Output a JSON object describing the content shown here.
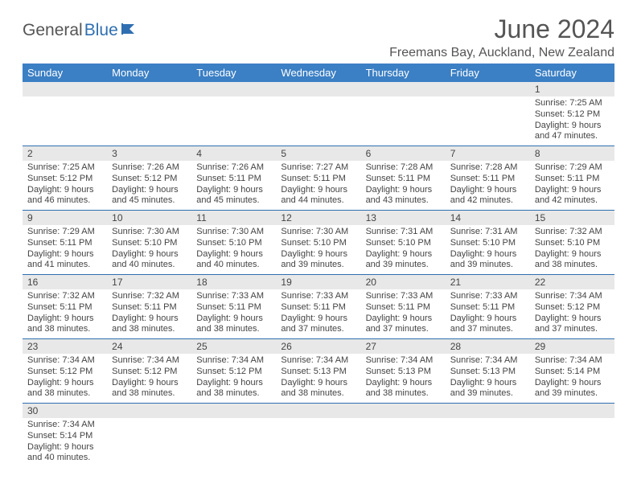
{
  "logo": {
    "part1": "General",
    "part2": "Blue"
  },
  "title": "June 2024",
  "location": "Freemans Bay, Auckland, New Zealand",
  "colors": {
    "header_bg": "#3b7fc4",
    "header_text": "#ffffff",
    "border": "#2f6fb0",
    "daynum_bg": "#e8e8e8",
    "text": "#444444",
    "logo_gray": "#555555",
    "logo_blue": "#2f6fb0"
  },
  "dow": [
    "Sunday",
    "Monday",
    "Tuesday",
    "Wednesday",
    "Thursday",
    "Friday",
    "Saturday"
  ],
  "weeks": [
    [
      {
        "n": "",
        "lines": []
      },
      {
        "n": "",
        "lines": []
      },
      {
        "n": "",
        "lines": []
      },
      {
        "n": "",
        "lines": []
      },
      {
        "n": "",
        "lines": []
      },
      {
        "n": "",
        "lines": []
      },
      {
        "n": "1",
        "lines": [
          "Sunrise: 7:25 AM",
          "Sunset: 5:12 PM",
          "Daylight: 9 hours",
          "and 47 minutes."
        ]
      }
    ],
    [
      {
        "n": "2",
        "lines": [
          "Sunrise: 7:25 AM",
          "Sunset: 5:12 PM",
          "Daylight: 9 hours",
          "and 46 minutes."
        ]
      },
      {
        "n": "3",
        "lines": [
          "Sunrise: 7:26 AM",
          "Sunset: 5:12 PM",
          "Daylight: 9 hours",
          "and 45 minutes."
        ]
      },
      {
        "n": "4",
        "lines": [
          "Sunrise: 7:26 AM",
          "Sunset: 5:11 PM",
          "Daylight: 9 hours",
          "and 45 minutes."
        ]
      },
      {
        "n": "5",
        "lines": [
          "Sunrise: 7:27 AM",
          "Sunset: 5:11 PM",
          "Daylight: 9 hours",
          "and 44 minutes."
        ]
      },
      {
        "n": "6",
        "lines": [
          "Sunrise: 7:28 AM",
          "Sunset: 5:11 PM",
          "Daylight: 9 hours",
          "and 43 minutes."
        ]
      },
      {
        "n": "7",
        "lines": [
          "Sunrise: 7:28 AM",
          "Sunset: 5:11 PM",
          "Daylight: 9 hours",
          "and 42 minutes."
        ]
      },
      {
        "n": "8",
        "lines": [
          "Sunrise: 7:29 AM",
          "Sunset: 5:11 PM",
          "Daylight: 9 hours",
          "and 42 minutes."
        ]
      }
    ],
    [
      {
        "n": "9",
        "lines": [
          "Sunrise: 7:29 AM",
          "Sunset: 5:11 PM",
          "Daylight: 9 hours",
          "and 41 minutes."
        ]
      },
      {
        "n": "10",
        "lines": [
          "Sunrise: 7:30 AM",
          "Sunset: 5:10 PM",
          "Daylight: 9 hours",
          "and 40 minutes."
        ]
      },
      {
        "n": "11",
        "lines": [
          "Sunrise: 7:30 AM",
          "Sunset: 5:10 PM",
          "Daylight: 9 hours",
          "and 40 minutes."
        ]
      },
      {
        "n": "12",
        "lines": [
          "Sunrise: 7:30 AM",
          "Sunset: 5:10 PM",
          "Daylight: 9 hours",
          "and 39 minutes."
        ]
      },
      {
        "n": "13",
        "lines": [
          "Sunrise: 7:31 AM",
          "Sunset: 5:10 PM",
          "Daylight: 9 hours",
          "and 39 minutes."
        ]
      },
      {
        "n": "14",
        "lines": [
          "Sunrise: 7:31 AM",
          "Sunset: 5:10 PM",
          "Daylight: 9 hours",
          "and 39 minutes."
        ]
      },
      {
        "n": "15",
        "lines": [
          "Sunrise: 7:32 AM",
          "Sunset: 5:10 PM",
          "Daylight: 9 hours",
          "and 38 minutes."
        ]
      }
    ],
    [
      {
        "n": "16",
        "lines": [
          "Sunrise: 7:32 AM",
          "Sunset: 5:11 PM",
          "Daylight: 9 hours",
          "and 38 minutes."
        ]
      },
      {
        "n": "17",
        "lines": [
          "Sunrise: 7:32 AM",
          "Sunset: 5:11 PM",
          "Daylight: 9 hours",
          "and 38 minutes."
        ]
      },
      {
        "n": "18",
        "lines": [
          "Sunrise: 7:33 AM",
          "Sunset: 5:11 PM",
          "Daylight: 9 hours",
          "and 38 minutes."
        ]
      },
      {
        "n": "19",
        "lines": [
          "Sunrise: 7:33 AM",
          "Sunset: 5:11 PM",
          "Daylight: 9 hours",
          "and 37 minutes."
        ]
      },
      {
        "n": "20",
        "lines": [
          "Sunrise: 7:33 AM",
          "Sunset: 5:11 PM",
          "Daylight: 9 hours",
          "and 37 minutes."
        ]
      },
      {
        "n": "21",
        "lines": [
          "Sunrise: 7:33 AM",
          "Sunset: 5:11 PM",
          "Daylight: 9 hours",
          "and 37 minutes."
        ]
      },
      {
        "n": "22",
        "lines": [
          "Sunrise: 7:34 AM",
          "Sunset: 5:12 PM",
          "Daylight: 9 hours",
          "and 37 minutes."
        ]
      }
    ],
    [
      {
        "n": "23",
        "lines": [
          "Sunrise: 7:34 AM",
          "Sunset: 5:12 PM",
          "Daylight: 9 hours",
          "and 38 minutes."
        ]
      },
      {
        "n": "24",
        "lines": [
          "Sunrise: 7:34 AM",
          "Sunset: 5:12 PM",
          "Daylight: 9 hours",
          "and 38 minutes."
        ]
      },
      {
        "n": "25",
        "lines": [
          "Sunrise: 7:34 AM",
          "Sunset: 5:12 PM",
          "Daylight: 9 hours",
          "and 38 minutes."
        ]
      },
      {
        "n": "26",
        "lines": [
          "Sunrise: 7:34 AM",
          "Sunset: 5:13 PM",
          "Daylight: 9 hours",
          "and 38 minutes."
        ]
      },
      {
        "n": "27",
        "lines": [
          "Sunrise: 7:34 AM",
          "Sunset: 5:13 PM",
          "Daylight: 9 hours",
          "and 38 minutes."
        ]
      },
      {
        "n": "28",
        "lines": [
          "Sunrise: 7:34 AM",
          "Sunset: 5:13 PM",
          "Daylight: 9 hours",
          "and 39 minutes."
        ]
      },
      {
        "n": "29",
        "lines": [
          "Sunrise: 7:34 AM",
          "Sunset: 5:14 PM",
          "Daylight: 9 hours",
          "and 39 minutes."
        ]
      }
    ],
    [
      {
        "n": "30",
        "lines": [
          "Sunrise: 7:34 AM",
          "Sunset: 5:14 PM",
          "Daylight: 9 hours",
          "and 40 minutes."
        ]
      },
      {
        "n": "",
        "lines": []
      },
      {
        "n": "",
        "lines": []
      },
      {
        "n": "",
        "lines": []
      },
      {
        "n": "",
        "lines": []
      },
      {
        "n": "",
        "lines": []
      },
      {
        "n": "",
        "lines": []
      }
    ]
  ]
}
